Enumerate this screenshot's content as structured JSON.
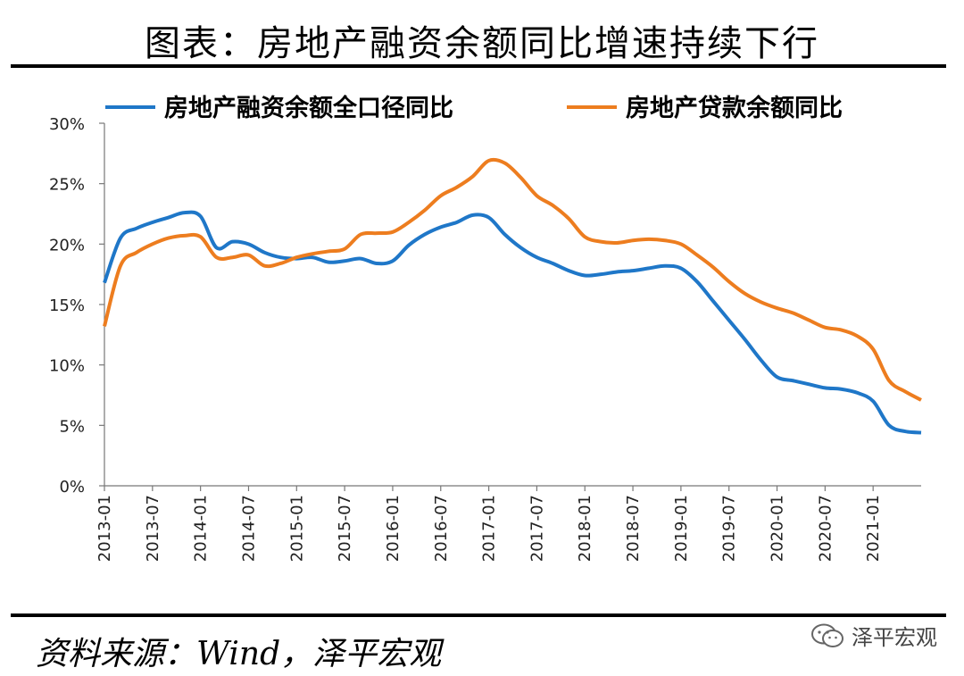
{
  "header": {
    "title": "图表：房地产融资余额同比增速持续下行"
  },
  "footer": {
    "source": "资料来源：Wind，泽平宏观",
    "brand": "泽平宏观"
  },
  "chart_data": {
    "type": "line",
    "ylim": [
      0,
      30
    ],
    "y_ticks": [
      "0%",
      "5%",
      "10%",
      "15%",
      "20%",
      "25%",
      "30%"
    ],
    "x_ticks": [
      "2013-01",
      "2013-07",
      "2014-01",
      "2014-07",
      "2015-01",
      "2015-07",
      "2016-01",
      "2016-07",
      "2017-01",
      "2017-07",
      "2018-01",
      "2018-07",
      "2019-01",
      "2019-07",
      "2020-01",
      "2020-07",
      "2021-01"
    ],
    "legend_position": "top",
    "series": [
      {
        "name": "房地产融资余额全口径同比",
        "color": "#1F77C8",
        "points": [
          [
            "2013-01",
            16.8
          ],
          [
            "2013-03",
            20.5
          ],
          [
            "2013-05",
            21.3
          ],
          [
            "2013-07",
            21.8
          ],
          [
            "2013-09",
            22.2
          ],
          [
            "2013-11",
            22.6
          ],
          [
            "2014-01",
            22.3
          ],
          [
            "2014-03",
            19.7
          ],
          [
            "2014-05",
            20.2
          ],
          [
            "2014-07",
            20.0
          ],
          [
            "2014-09",
            19.3
          ],
          [
            "2014-11",
            18.9
          ],
          [
            "2015-01",
            18.8
          ],
          [
            "2015-03",
            18.9
          ],
          [
            "2015-05",
            18.5
          ],
          [
            "2015-07",
            18.6
          ],
          [
            "2015-09",
            18.8
          ],
          [
            "2015-11",
            18.4
          ],
          [
            "2016-01",
            18.6
          ],
          [
            "2016-03",
            19.9
          ],
          [
            "2016-05",
            20.8
          ],
          [
            "2016-07",
            21.4
          ],
          [
            "2016-09",
            21.8
          ],
          [
            "2016-11",
            22.4
          ],
          [
            "2017-01",
            22.2
          ],
          [
            "2017-03",
            20.8
          ],
          [
            "2017-05",
            19.7
          ],
          [
            "2017-07",
            18.9
          ],
          [
            "2017-09",
            18.4
          ],
          [
            "2017-11",
            17.8
          ],
          [
            "2018-01",
            17.4
          ],
          [
            "2018-03",
            17.5
          ],
          [
            "2018-05",
            17.7
          ],
          [
            "2018-07",
            17.8
          ],
          [
            "2018-09",
            18.0
          ],
          [
            "2018-11",
            18.2
          ],
          [
            "2019-01",
            18.0
          ],
          [
            "2019-03",
            16.9
          ],
          [
            "2019-05",
            15.3
          ],
          [
            "2019-07",
            13.7
          ],
          [
            "2019-09",
            12.1
          ],
          [
            "2019-11",
            10.4
          ],
          [
            "2020-01",
            9.0
          ],
          [
            "2020-03",
            8.7
          ],
          [
            "2020-05",
            8.4
          ],
          [
            "2020-07",
            8.1
          ],
          [
            "2020-09",
            8.0
          ],
          [
            "2020-11",
            7.7
          ],
          [
            "2021-01",
            7.0
          ],
          [
            "2021-03",
            5.0
          ],
          [
            "2021-05",
            4.5
          ],
          [
            "2021-07",
            4.4
          ]
        ]
      },
      {
        "name": "房地产贷款余额同比",
        "color": "#ED7D1F",
        "points": [
          [
            "2013-01",
            13.2
          ],
          [
            "2013-03",
            18.2
          ],
          [
            "2013-05",
            19.3
          ],
          [
            "2013-07",
            20.0
          ],
          [
            "2013-09",
            20.5
          ],
          [
            "2013-11",
            20.7
          ],
          [
            "2014-01",
            20.6
          ],
          [
            "2014-03",
            18.9
          ],
          [
            "2014-05",
            18.9
          ],
          [
            "2014-07",
            19.1
          ],
          [
            "2014-09",
            18.2
          ],
          [
            "2014-11",
            18.4
          ],
          [
            "2015-01",
            18.9
          ],
          [
            "2015-03",
            19.2
          ],
          [
            "2015-05",
            19.4
          ],
          [
            "2015-07",
            19.6
          ],
          [
            "2015-09",
            20.8
          ],
          [
            "2015-11",
            20.9
          ],
          [
            "2016-01",
            21.0
          ],
          [
            "2016-03",
            21.8
          ],
          [
            "2016-05",
            22.8
          ],
          [
            "2016-07",
            24.0
          ],
          [
            "2016-09",
            24.7
          ],
          [
            "2016-11",
            25.6
          ],
          [
            "2017-01",
            26.9
          ],
          [
            "2017-03",
            26.7
          ],
          [
            "2017-05",
            25.5
          ],
          [
            "2017-07",
            24.0
          ],
          [
            "2017-09",
            23.2
          ],
          [
            "2017-11",
            22.1
          ],
          [
            "2018-01",
            20.6
          ],
          [
            "2018-03",
            20.2
          ],
          [
            "2018-05",
            20.1
          ],
          [
            "2018-07",
            20.3
          ],
          [
            "2018-09",
            20.4
          ],
          [
            "2018-11",
            20.3
          ],
          [
            "2019-01",
            20.0
          ],
          [
            "2019-03",
            19.1
          ],
          [
            "2019-05",
            18.1
          ],
          [
            "2019-07",
            16.9
          ],
          [
            "2019-09",
            15.9
          ],
          [
            "2019-11",
            15.2
          ],
          [
            "2020-01",
            14.7
          ],
          [
            "2020-03",
            14.3
          ],
          [
            "2020-05",
            13.7
          ],
          [
            "2020-07",
            13.1
          ],
          [
            "2020-09",
            12.9
          ],
          [
            "2020-11",
            12.4
          ],
          [
            "2021-01",
            11.3
          ],
          [
            "2021-03",
            8.7
          ],
          [
            "2021-05",
            7.8
          ],
          [
            "2021-07",
            7.1
          ]
        ]
      }
    ]
  }
}
